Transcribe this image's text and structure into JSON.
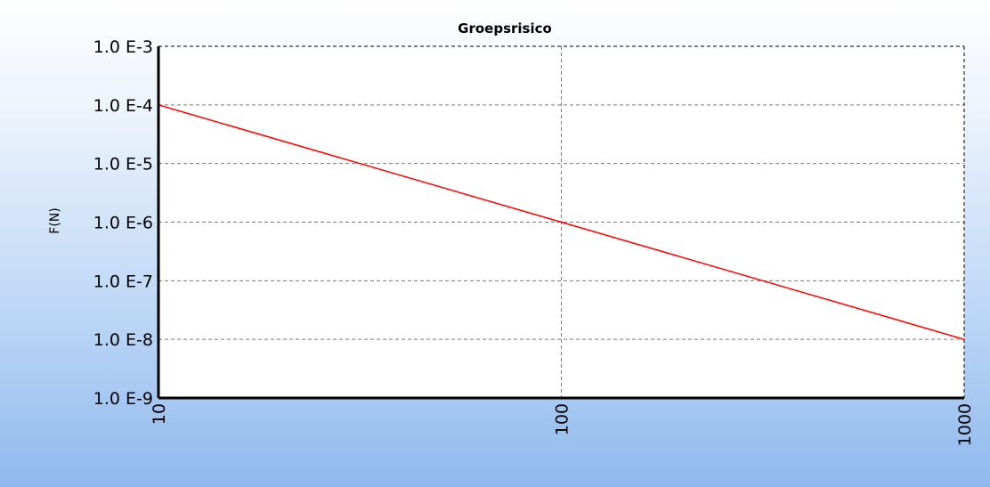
{
  "chart_data": {
    "type": "line",
    "title": "Groepsrisico",
    "xlabel": "",
    "ylabel": "F(N)",
    "x_scale": "log",
    "y_scale": "log",
    "xlim": [
      10,
      1000
    ],
    "ylim": [
      1e-09,
      0.001
    ],
    "x_ticks": [
      {
        "value": 10,
        "label": "10"
      },
      {
        "value": 100,
        "label": "100"
      },
      {
        "value": 1000,
        "label": "1000"
      }
    ],
    "y_ticks": [
      {
        "value": 0.001,
        "label": "1.0 E-3"
      },
      {
        "value": 0.0001,
        "label": "1.0 E-4"
      },
      {
        "value": 1e-05,
        "label": "1.0 E-5"
      },
      {
        "value": 1e-06,
        "label": "1.0 E-6"
      },
      {
        "value": 1e-07,
        "label": "1.0 E-7"
      },
      {
        "value": 1e-08,
        "label": "1.0 E-8"
      },
      {
        "value": 1e-09,
        "label": "1.0 E-9"
      }
    ],
    "grid": true,
    "series": [
      {
        "color": "#ff0000",
        "x": [
          10,
          100,
          1000
        ],
        "y": [
          0.0001,
          1e-06,
          1e-08
        ]
      }
    ]
  }
}
